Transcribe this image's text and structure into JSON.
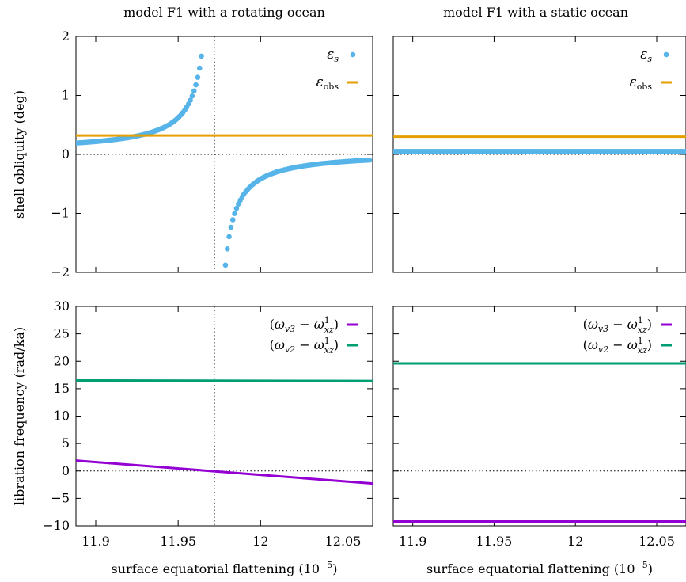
{
  "chart_data": [
    {
      "panel": "top-left",
      "type": "scatter",
      "title": "model F1 with a rotating ocean",
      "xlabel": "",
      "ylabel": "shell obliquity (deg)",
      "xlim": [
        11.888,
        12.068
      ],
      "ylim": [
        -2,
        2
      ],
      "xticks": [
        11.9,
        11.95,
        12,
        12.05
      ],
      "yticks": [
        -2,
        -1,
        0,
        1,
        2
      ],
      "ytick_labels": [
        "−2",
        "−1",
        "0",
        "1",
        "2"
      ],
      "show_x_tick_labels": false,
      "resonance_x": 11.972,
      "zero_line": true,
      "legend_position": "top-right",
      "series": [
        {
          "name": "εs",
          "label_main": "ε",
          "label_sub": "s",
          "kind": "points",
          "color": "#56b4e9",
          "model": "resonance",
          "x_start": 11.888,
          "x_end": 12.066,
          "n_points": 160,
          "x_exclude": [
            11.969,
            11.977
          ],
          "coeff": 0.0128,
          "offset": 0.04
        },
        {
          "name": "εobs",
          "label_main": "ε",
          "label_sub": "obs",
          "kind": "line",
          "color": "#e69f00",
          "x": [
            11.888,
            12.068
          ],
          "y": [
            0.32,
            0.32
          ]
        }
      ]
    },
    {
      "panel": "top-right",
      "type": "scatter",
      "title": "model F1 with a static ocean",
      "xlabel": "",
      "ylabel": "",
      "xlim": [
        11.888,
        12.068
      ],
      "ylim": [
        -2,
        2
      ],
      "xticks": [
        11.9,
        11.95,
        12,
        12.05
      ],
      "yticks": [
        -2,
        -1,
        0,
        1,
        2
      ],
      "show_x_tick_labels": false,
      "show_y_tick_labels": false,
      "zero_line": true,
      "legend_position": "top-right",
      "series": [
        {
          "name": "εs",
          "label_main": "ε",
          "label_sub": "s",
          "kind": "points",
          "color": "#56b4e9",
          "model": "constant",
          "x_start": 11.888,
          "x_end": 12.068,
          "n_points": 160,
          "value": 0.05
        },
        {
          "name": "εobs",
          "label_main": "ε",
          "label_sub": "obs",
          "kind": "line",
          "color": "#e69f00",
          "x": [
            11.888,
            12.068
          ],
          "y": [
            0.3,
            0.3
          ]
        }
      ]
    },
    {
      "panel": "bottom-left",
      "type": "line",
      "title": "",
      "xlabel": "surface equatorial flattening (10−5)",
      "xlabel_main": "surface equatorial flattening (10",
      "xlabel_sup": "−5",
      "xlabel_end": ")",
      "ylabel": "libration frequency (rad/ka)",
      "xlim": [
        11.888,
        12.068
      ],
      "ylim": [
        -10,
        30
      ],
      "xticks": [
        11.9,
        11.95,
        12,
        12.05
      ],
      "xtick_labels": [
        "11.9",
        "11.95",
        "12",
        "12.05"
      ],
      "yticks": [
        -10,
        -5,
        0,
        5,
        10,
        15,
        20,
        25,
        30
      ],
      "ytick_labels": [
        "−10",
        "−5",
        "0",
        "5",
        "10",
        "15",
        "20",
        "25",
        "30"
      ],
      "resonance_x": 11.972,
      "zero_line": true,
      "legend_position": "top-right",
      "series": [
        {
          "name": "(ωv3 − ω1xz)",
          "label_main": "ω",
          "label_sub": "v3",
          "kind": "line",
          "color": "#9400d3",
          "x": [
            11.888,
            12.068
          ],
          "y": [
            1.9,
            -2.3
          ]
        },
        {
          "name": "(ωv2 − ω1xz)",
          "label_main": "ω",
          "label_sub": "v2",
          "kind": "line",
          "color": "#009e73",
          "x": [
            11.888,
            12.068
          ],
          "y": [
            16.5,
            16.4
          ]
        }
      ]
    },
    {
      "panel": "bottom-right",
      "type": "line",
      "title": "",
      "xlabel": "surface equatorial flattening (10−5)",
      "xlabel_main": "surface equatorial flattening (10",
      "xlabel_sup": "−5",
      "xlabel_end": ")",
      "ylabel": "",
      "xlim": [
        11.888,
        12.068
      ],
      "ylim": [
        -10,
        30
      ],
      "xticks": [
        11.9,
        11.95,
        12,
        12.05
      ],
      "xtick_labels": [
        "11.9",
        "11.95",
        "12",
        "12.05"
      ],
      "yticks": [
        -10,
        -5,
        0,
        5,
        10,
        15,
        20,
        25,
        30
      ],
      "show_y_tick_labels": false,
      "zero_line": true,
      "legend_position": "top-right",
      "series": [
        {
          "name": "(ωv3 − ω1xz)",
          "label_main": "ω",
          "label_sub": "v3",
          "kind": "line",
          "color": "#9400d3",
          "x": [
            11.888,
            12.068
          ],
          "y": [
            -9.2,
            -9.2
          ]
        },
        {
          "name": "(ωv2 − ω1xz)",
          "label_main": "ω",
          "label_sub": "v2",
          "kind": "line",
          "color": "#009e73",
          "x": [
            11.888,
            12.068
          ],
          "y": [
            19.6,
            19.6
          ]
        }
      ]
    }
  ]
}
